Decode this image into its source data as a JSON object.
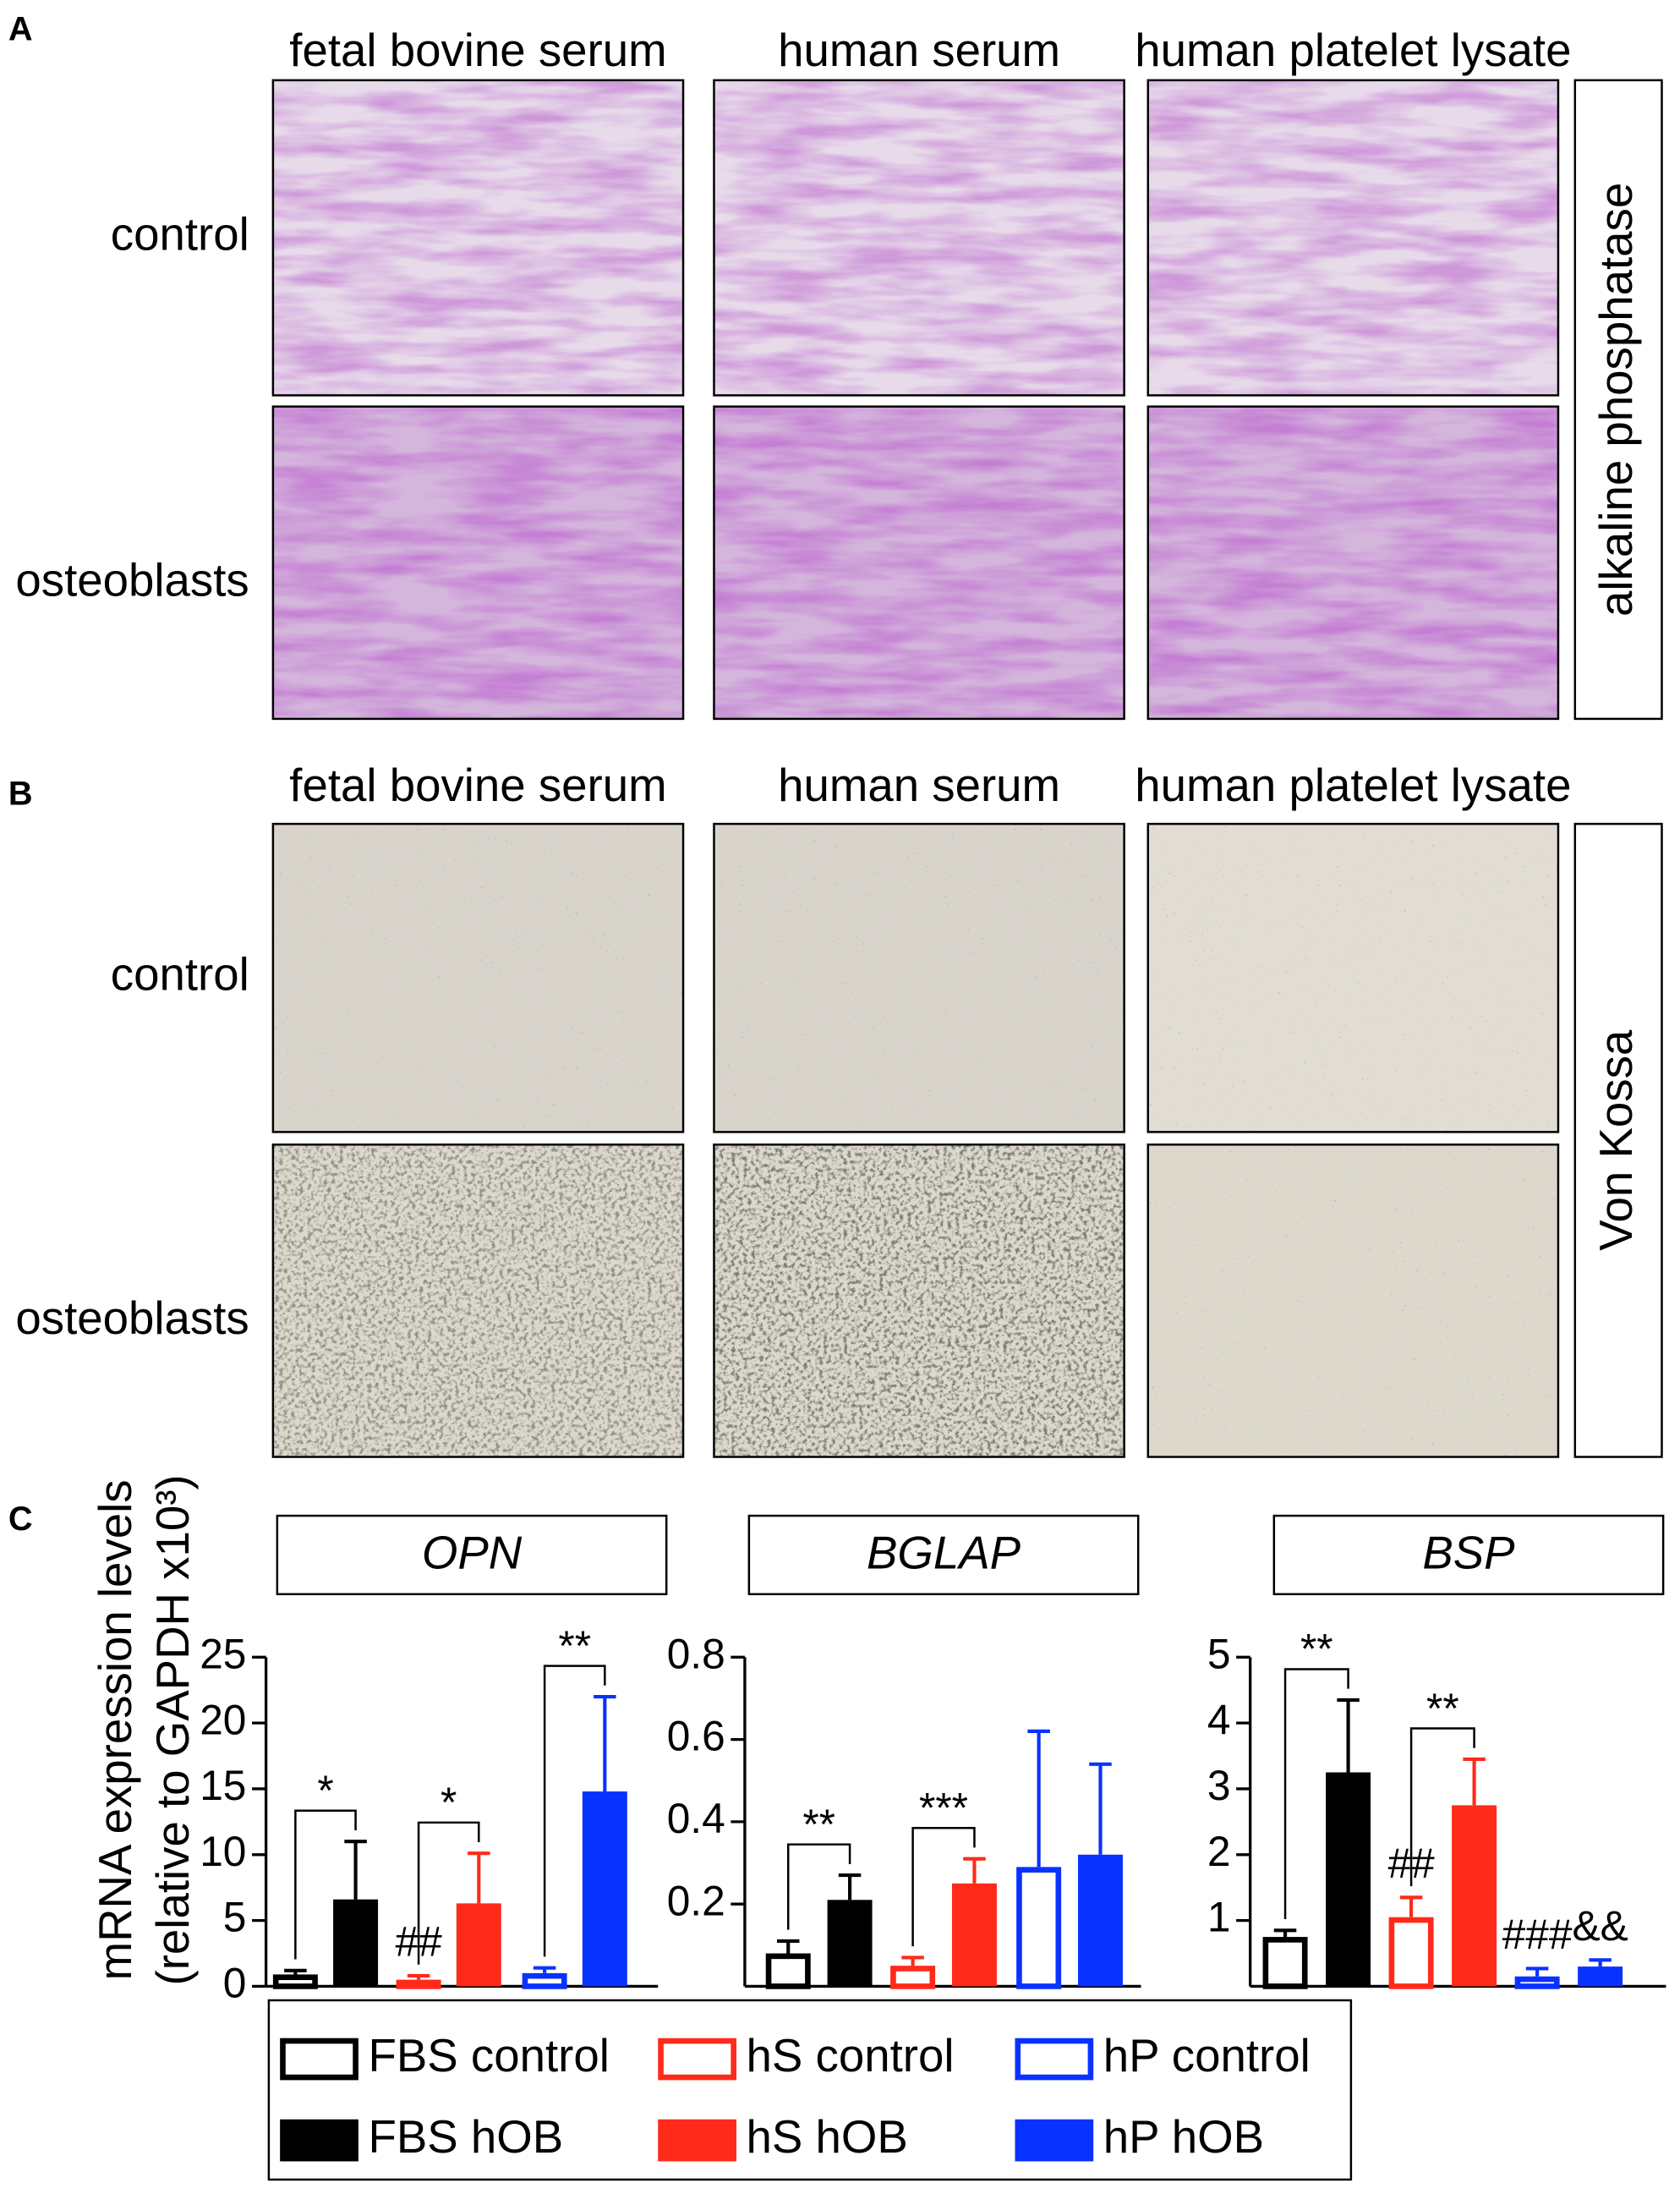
{
  "panel_a": {
    "label": "A",
    "columns": [
      "fetal bovine serum",
      "human serum",
      "human platelet lysate"
    ],
    "rows": [
      "control",
      "osteoblasts"
    ],
    "stain": "alkaline phosphatase"
  },
  "panel_b": {
    "label": "B",
    "columns": [
      "fetal bovine serum",
      "human serum",
      "human platelet lysate"
    ],
    "rows": [
      "control",
      "osteoblasts"
    ],
    "stain": "Von Kossa"
  },
  "panel_c": {
    "label": "C",
    "y_axis_label": [
      "mRNA expression levels",
      "(relative to GAPDH x10³)"
    ],
    "legend": [
      {
        "name": "FBS control",
        "color": "#000000",
        "filled": false
      },
      {
        "name": "FBS hOB",
        "color": "#000000",
        "filled": true
      },
      {
        "name": "hS control",
        "color": "#ff2a1a",
        "filled": false
      },
      {
        "name": "hS hOB",
        "color": "#ff2a1a",
        "filled": true
      },
      {
        "name": "hP control",
        "color": "#0a32ff",
        "filled": false
      },
      {
        "name": "hP hOB",
        "color": "#0a32ff",
        "filled": true
      }
    ]
  },
  "chart_data": [
    {
      "type": "bar",
      "title": "OPN",
      "values": [
        0.9,
        6.6,
        0.5,
        6.3,
        1.0,
        14.8
      ],
      "errors": [
        0.3,
        4.4,
        0.3,
        3.8,
        0.4,
        7.2
      ],
      "ylim": [
        0,
        25
      ],
      "yticks": [
        0,
        5,
        10,
        15,
        20,
        25
      ],
      "brackets": [
        {
          "text": "*",
          "from": 0,
          "to": 1
        },
        {
          "text": "*",
          "from": 2,
          "to": 3
        },
        {
          "text": "**",
          "from": 4,
          "to": 5
        }
      ],
      "marks": [
        {
          "text": "##",
          "bar": 2
        }
      ]
    },
    {
      "type": "bar",
      "title": "BGLAP",
      "values": [
        0.08,
        0.21,
        0.05,
        0.25,
        0.29,
        0.32
      ],
      "errors": [
        0.03,
        0.06,
        0.02,
        0.06,
        0.33,
        0.22
      ],
      "ylim": [
        0,
        0.8
      ],
      "yticks": [
        0.2,
        0.4,
        0.6,
        0.8
      ],
      "brackets": [
        {
          "text": "**",
          "from": 0,
          "to": 1
        },
        {
          "text": "***",
          "from": 2,
          "to": 3
        }
      ],
      "marks": []
    },
    {
      "type": "bar",
      "title": "BSP",
      "values": [
        0.75,
        3.25,
        1.05,
        2.75,
        0.15,
        0.3
      ],
      "errors": [
        0.1,
        1.1,
        0.3,
        0.7,
        0.12,
        0.1
      ],
      "ylim": [
        0,
        5
      ],
      "yticks": [
        1,
        2,
        3,
        4,
        5
      ],
      "brackets": [
        {
          "text": "**",
          "from": 0,
          "to": 1
        },
        {
          "text": "**",
          "from": 2,
          "to": 3
        }
      ],
      "marks": [
        {
          "text": "##",
          "bar": 2
        },
        {
          "text": "###",
          "bar": 4
        },
        {
          "text": "&&",
          "bar": 5
        }
      ]
    }
  ]
}
